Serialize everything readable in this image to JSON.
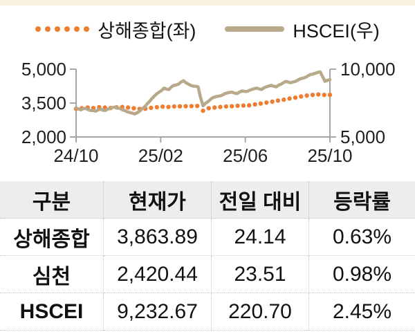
{
  "page": {
    "top_strip_color": "#F7F1E0"
  },
  "chart_data": {
    "type": "line",
    "title": "",
    "xlabel": "",
    "ylabel_left": "",
    "ylabel_right": "",
    "x_ticks": [
      "24/10",
      "25/02",
      "25/06",
      "25/10"
    ],
    "left_axis": {
      "ticks": [
        5000,
        3500,
        2000
      ],
      "labels": [
        "5,000",
        "3,500",
        "2,000"
      ],
      "range": [
        2000,
        5000
      ]
    },
    "right_axis": {
      "ticks": [
        10000,
        5000
      ],
      "labels": [
        "10,000",
        "5,000"
      ],
      "range": [
        5000,
        10000
      ]
    },
    "legend_position": "top",
    "series": [
      {
        "name": "상해종합(좌)",
        "axis": "left",
        "style": "dotted",
        "color": "#ED7D31",
        "values": [
          3250,
          3270,
          3300,
          3280,
          3320,
          3300,
          3280,
          3310,
          3330,
          3300,
          3270,
          3240,
          3250,
          3290,
          3320,
          3340,
          3330,
          3350,
          3355,
          3360,
          3365,
          3370,
          3160,
          3270,
          3300,
          3330,
          3350,
          3360,
          3380,
          3390,
          3400,
          3440,
          3480,
          3520,
          3560,
          3610,
          3650,
          3700,
          3740,
          3790,
          3830,
          3860,
          3880,
          3860,
          3864
        ]
      },
      {
        "name": "HSCEI(우)",
        "axis": "right",
        "style": "solid",
        "color": "#B7A98A",
        "values": [
          7150,
          7060,
          7000,
          7090,
          7100,
          7010,
          6950,
          6960,
          6900,
          7000,
          7050,
          6970,
          6950,
          7060,
          7100,
          7180,
          7200,
          7130,
          7100,
          7000,
          6950,
          6850,
          6800,
          6760,
          6700,
          6780,
          6900,
          7080,
          7200,
          7420,
          7600,
          7820,
          8000,
          8180,
          8300,
          8420,
          8600,
          8530,
          8500,
          8680,
          8800,
          8830,
          8900,
          9050,
          9150,
          9000,
          8900,
          8800,
          8750,
          8740,
          8700,
          7900,
          7300,
          7480,
          7600,
          7760,
          7900,
          7960,
          8000,
          8030,
          8100,
          8200,
          8250,
          8290,
          8300,
          8230,
          8200,
          8320,
          8400,
          8360,
          8350,
          8440,
          8500,
          8560,
          8600,
          8540,
          8500,
          8620,
          8700,
          8760,
          8800,
          8740,
          8700,
          8820,
          8900,
          9010,
          9100,
          9040,
          9000,
          9060,
          9100,
          9210,
          9300,
          9340,
          9400,
          9510,
          9600,
          9640,
          9700,
          9760,
          9800,
          9450,
          9100,
          9180,
          9233
        ]
      }
    ]
  },
  "table": {
    "headers": [
      "구분",
      "현재가",
      "전일 대비",
      "등락률"
    ],
    "rows": [
      {
        "name": "상해종합",
        "price": "3,863.89",
        "change": "24.14",
        "pct": "0.63%"
      },
      {
        "name": "심천",
        "price": "2,420.44",
        "change": "23.51",
        "pct": "0.98%"
      },
      {
        "name": "HSCEI",
        "price": "9,232.67",
        "change": "220.70",
        "pct": "2.45%"
      }
    ]
  }
}
